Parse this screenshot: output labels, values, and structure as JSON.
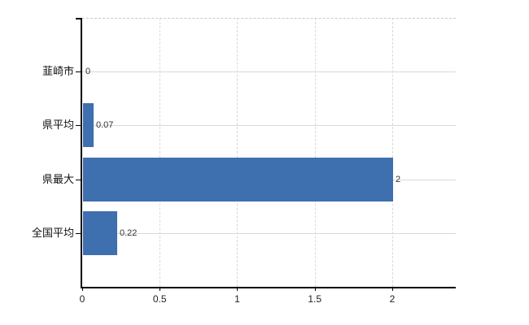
{
  "chart_data": {
    "type": "bar",
    "orientation": "horizontal",
    "title": "",
    "categories": [
      "韮崎市",
      "県平均",
      "県最大",
      "全国平均"
    ],
    "values": [
      0,
      0.07,
      2,
      0.22
    ],
    "value_labels": [
      "0",
      "0.07",
      "2",
      "0.22"
    ],
    "x_ticks": [
      0,
      0.5,
      1,
      1.5,
      2
    ],
    "x_tick_labels": [
      "0",
      "0.5",
      "1",
      "1.5",
      "2"
    ],
    "xlim": [
      0,
      2.41
    ],
    "legend": "none",
    "grid": {
      "vertical": "dashed",
      "horizontal": "solid",
      "top_border": "dashed"
    },
    "colors": {
      "bar": "#3e6fae",
      "axis": "#000000",
      "vertical_gridline": "#d9d9d9",
      "horizontal_gridline": "#d6dbd6",
      "background": "#ffffff",
      "value_label_text": "#333333",
      "category_label_text": "#111111"
    }
  }
}
